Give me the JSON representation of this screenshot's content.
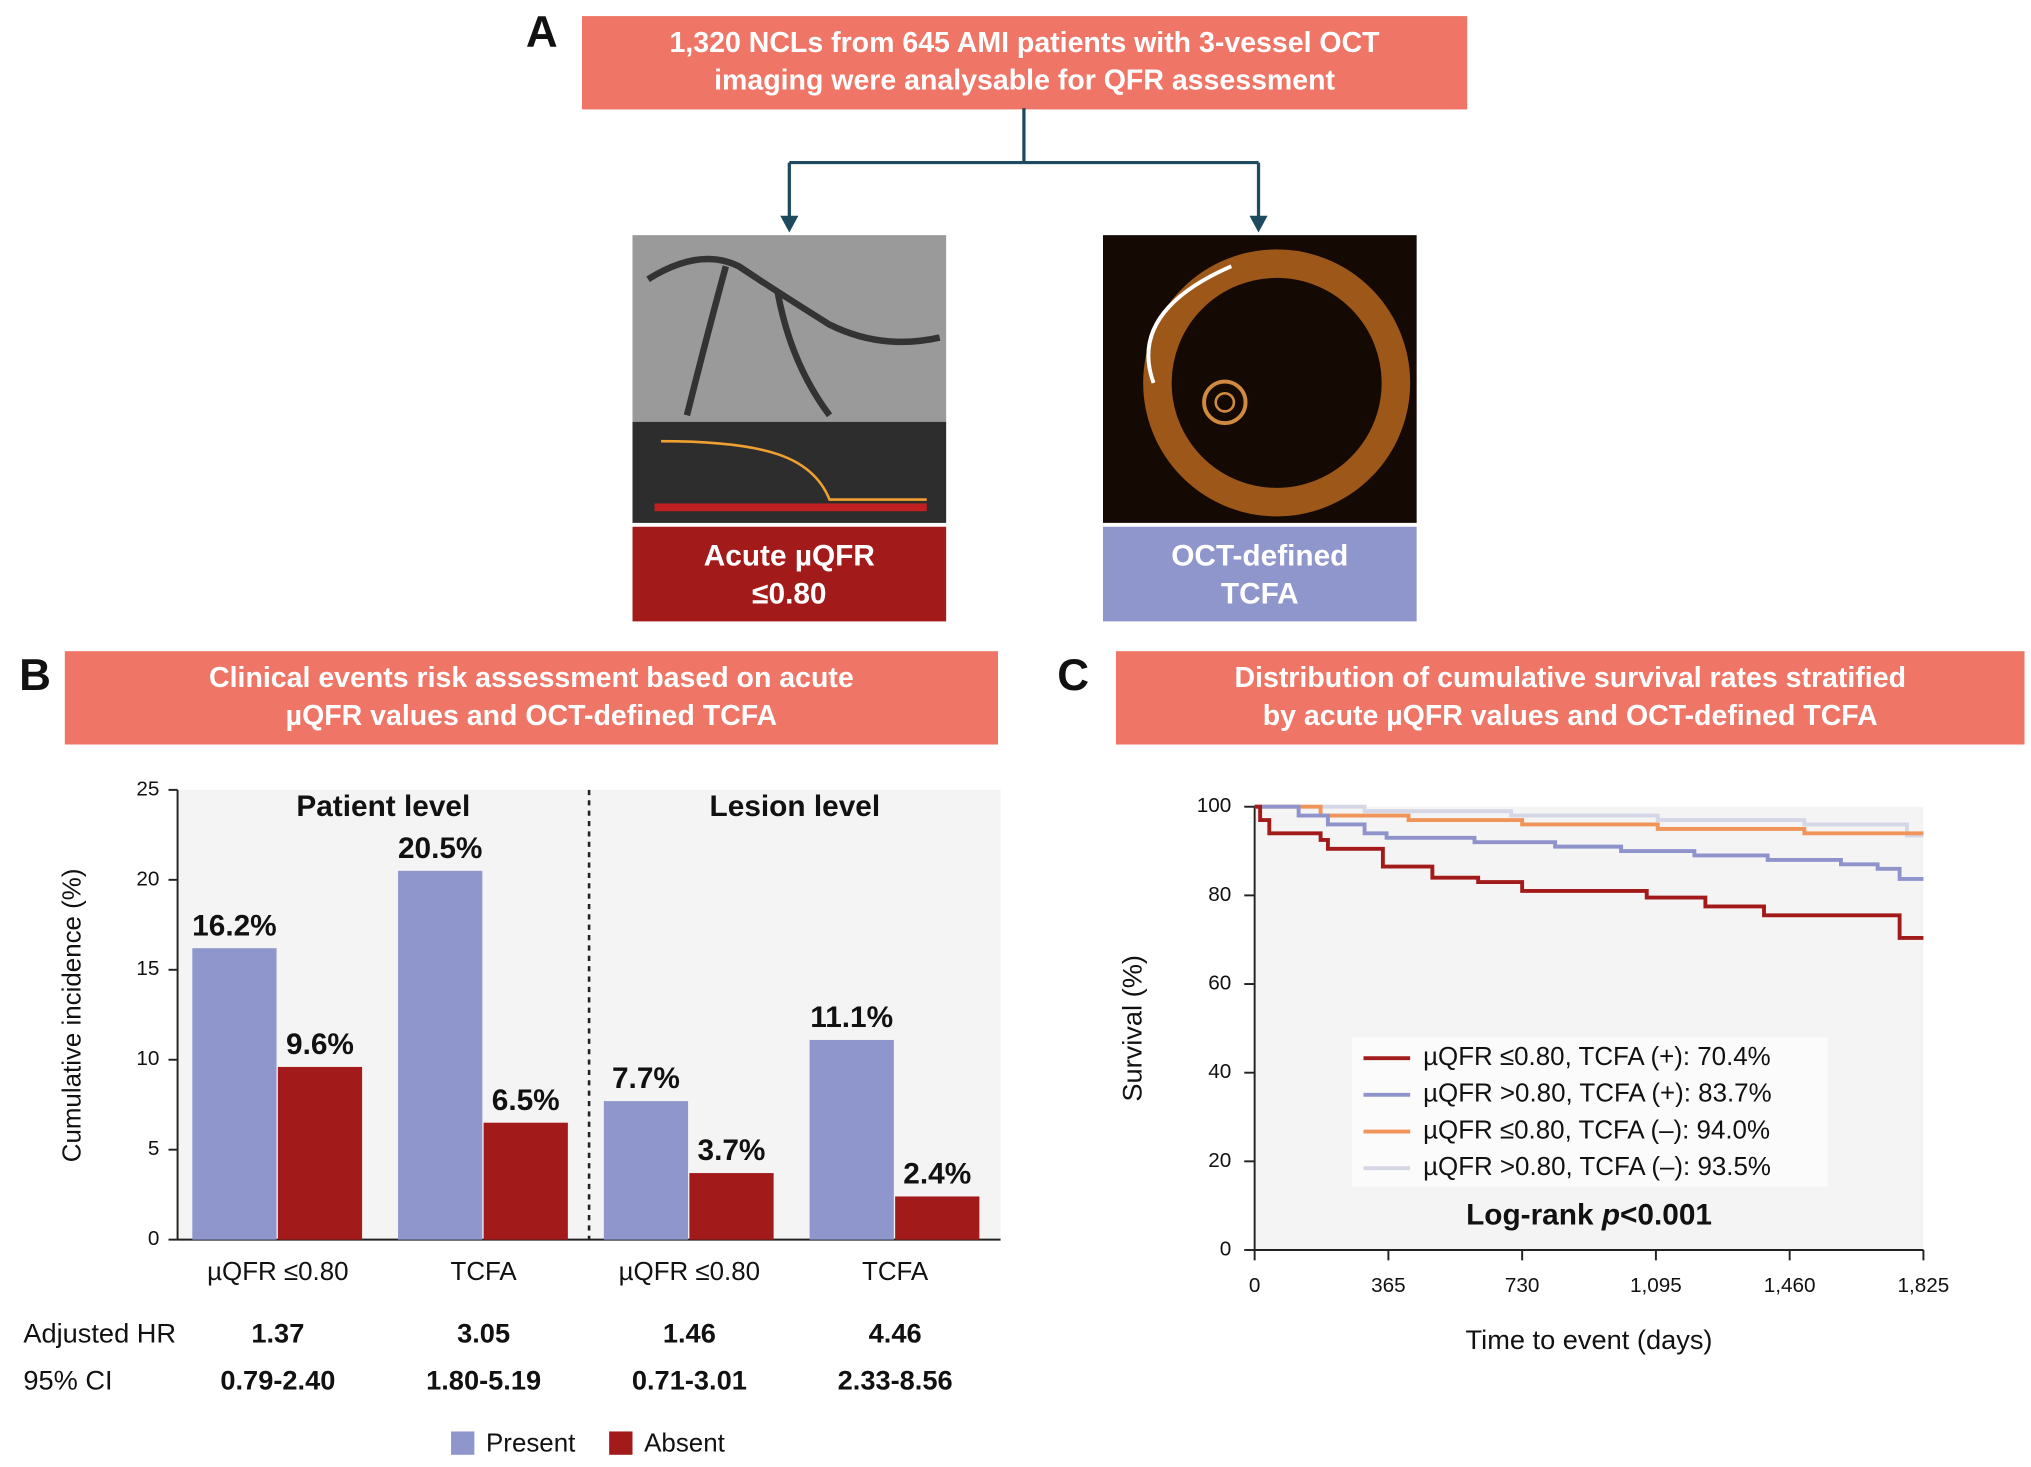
{
  "panel_a": {
    "label": "A",
    "title_lines": [
      "1,320 NCLs from 645 AMI patients with 3-vessel OCT",
      "imaging were analysable for QFR assessment"
    ],
    "boxes": [
      {
        "lines": [
          "Acute µQFR",
          "≤0.80"
        ],
        "color": "#a31a1a"
      },
      {
        "lines": [
          "OCT-defined",
          "TCFA"
        ],
        "color": "#8f96cc"
      }
    ]
  },
  "chart_data": [
    {
      "type": "bar",
      "panel_label": "B",
      "title_lines": [
        "Clinical events risk assessment based on acute",
        "µQFR values and OCT-defined TCFA"
      ],
      "ylabel": "Cumulative incidence (%)",
      "groups": [
        "Patient level",
        "Lesion level"
      ],
      "categories": [
        "µQFR ≤0.80",
        "TCFA",
        "µQFR ≤0.80",
        "TCFA"
      ],
      "series": [
        {
          "name": "Present",
          "color": "#8f96cc",
          "values": [
            16.2,
            20.5,
            7.7,
            11.1
          ],
          "value_labels": [
            "16.2%",
            "20.5%",
            "7.7%",
            "11.1%"
          ]
        },
        {
          "name": "Absent",
          "color": "#a31a1a",
          "values": [
            9.6,
            6.5,
            3.7,
            2.4
          ],
          "value_labels": [
            "9.6%",
            "6.5%",
            "3.7%",
            "2.4%"
          ]
        }
      ],
      "ylim": [
        0,
        25
      ],
      "yticks": [
        0,
        5,
        10,
        15,
        20,
        25
      ],
      "grid": false,
      "legend": "bottom",
      "table": {
        "rows": [
          {
            "label": "Adjusted HR",
            "cells": [
              "1.37",
              "3.05",
              "1.46",
              "4.46"
            ]
          },
          {
            "label": "95% CI",
            "cells": [
              "0.79-2.40",
              "1.80-5.19",
              "0.71-3.01",
              "2.33-8.56"
            ]
          }
        ]
      }
    },
    {
      "type": "line",
      "panel_label": "C",
      "title_lines": [
        "Distribution of cumulative survival rates stratified",
        "by acute µQFR values and OCT-defined TCFA"
      ],
      "xlabel": "Time to event (days)",
      "ylabel": "Survival (%)",
      "annotation": [
        "Log-rank ",
        "p",
        "<0.001"
      ],
      "xlim": [
        0,
        1825
      ],
      "xticks": [
        0,
        365,
        730,
        {
          "value": 1095,
          "label": "1,095"
        },
        {
          "value": 1460,
          "label": "1,460"
        },
        {
          "value": 1825,
          "label": "1,825"
        }
      ],
      "ylim": [
        0,
        100
      ],
      "yticks": [
        0,
        20,
        40,
        60,
        80,
        100
      ],
      "grid": false,
      "legend": "lower right",
      "series": [
        {
          "name": "µQFR ≤0.80, TCFA (+): 70.4%",
          "color": "#a31a1a",
          "x": [
            0,
            15,
            15,
            40,
            40,
            180,
            180,
            200,
            200,
            350,
            350,
            485,
            485,
            610,
            610,
            730,
            730,
            1070,
            1070,
            1230,
            1230,
            1390,
            1390,
            1760,
            1760,
            1825
          ],
          "values": [
            100,
            100,
            97,
            97,
            94,
            94,
            92.5,
            92.5,
            90.5,
            90.5,
            86.5,
            86.5,
            84,
            84,
            83,
            83,
            81,
            81,
            79.5,
            79.5,
            77.5,
            77.5,
            75.5,
            75.5,
            70.4,
            70.4
          ]
        },
        {
          "name": "µQFR >0.80, TCFA (+): 83.7%",
          "color": "#8e93cc",
          "x": [
            0,
            120,
            120,
            200,
            200,
            300,
            300,
            360,
            360,
            600,
            600,
            820,
            820,
            1000,
            1000,
            1200,
            1200,
            1400,
            1400,
            1600,
            1600,
            1700,
            1700,
            1760,
            1760,
            1825
          ],
          "values": [
            100,
            100,
            98,
            98,
            96,
            96,
            94,
            94,
            93,
            93,
            92,
            92,
            91,
            91,
            90,
            90,
            89,
            89,
            88,
            88,
            87,
            87,
            86,
            86,
            83.7,
            83.7
          ]
        },
        {
          "name": "µQFR ≤0.80, TCFA (–): 94.0%",
          "color": "#f0945a",
          "x": [
            0,
            180,
            180,
            420,
            420,
            730,
            730,
            1100,
            1100,
            1500,
            1500,
            1825
          ],
          "values": [
            100,
            100,
            98,
            98,
            97,
            97,
            96,
            96,
            95,
            95,
            94,
            94
          ]
        },
        {
          "name": "µQFR >0.80, TCFA (–): 93.5%",
          "color": "#d5d6e6",
          "x": [
            0,
            300,
            300,
            700,
            700,
            1100,
            1100,
            1500,
            1500,
            1780,
            1780,
            1825
          ],
          "values": [
            100,
            100,
            99,
            99,
            98,
            98,
            97,
            97,
            96,
            96,
            93.5,
            93.5
          ]
        }
      ]
    }
  ]
}
